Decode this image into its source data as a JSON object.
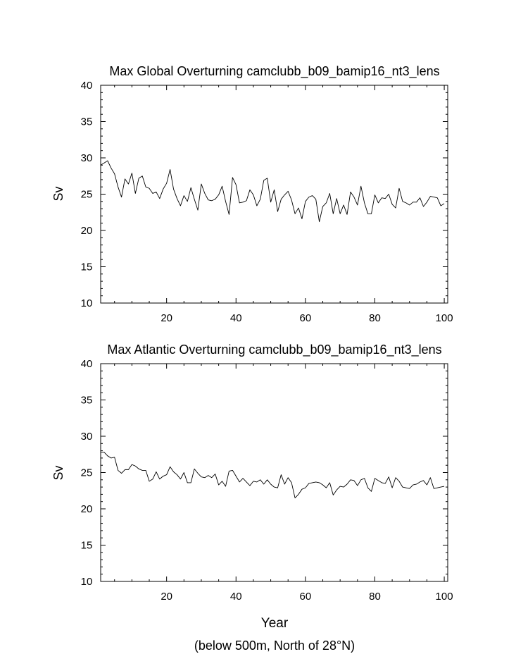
{
  "figure": {
    "xlabel": "Year",
    "caption": "(below 500m, North of 28°N)"
  },
  "chart_data": [
    {
      "type": "line",
      "title": "Max Global Overturning camclubb_b09_bamip16_nt3_lens",
      "xlabel": "",
      "ylabel": "Sv",
      "xlim": [
        1,
        101
      ],
      "ylim": [
        10,
        40
      ],
      "xticks": [
        20,
        40,
        60,
        80,
        100
      ],
      "yticks": [
        10,
        15,
        20,
        25,
        30,
        35,
        40
      ],
      "grid": false,
      "x_start": 1,
      "values": [
        29.0,
        29.3,
        29.6,
        28.6,
        27.8,
        26.0,
        24.6,
        27.1,
        26.4,
        27.9,
        25.1,
        27.2,
        27.5,
        26.0,
        25.8,
        25.1,
        25.3,
        24.4,
        25.7,
        26.5,
        28.4,
        25.7,
        24.4,
        23.4,
        24.8,
        24.0,
        25.9,
        24.3,
        22.8,
        26.4,
        25.1,
        24.2,
        24.1,
        24.3,
        24.9,
        26.1,
        24.0,
        22.2,
        27.3,
        26.3,
        23.8,
        23.9,
        24.1,
        25.6,
        24.9,
        23.4,
        24.3,
        26.9,
        27.2,
        23.9,
        25.6,
        22.6,
        24.3,
        24.9,
        25.4,
        24.2,
        22.3,
        23.1,
        21.6,
        24.0,
        24.6,
        24.8,
        24.3,
        21.2,
        23.3,
        23.8,
        25.1,
        22.3,
        24.4,
        22.3,
        23.5,
        22.2,
        25.3,
        24.6,
        23.5,
        26.1,
        23.8,
        22.3,
        22.3,
        24.9,
        23.8,
        24.5,
        24.4,
        25.0,
        23.6,
        23.1,
        25.8,
        24.0,
        23.8,
        23.5,
        23.9,
        23.9,
        24.5,
        23.3,
        23.9,
        24.7,
        24.6,
        24.5,
        23.4,
        23.7
      ]
    },
    {
      "type": "line",
      "title": "Max Atlantic Overturning camclubb_b09_bamip16_nt3_lens",
      "xlabel": "Year",
      "ylabel": "Sv",
      "xlim": [
        1,
        101
      ],
      "ylim": [
        10,
        40
      ],
      "xticks": [
        20,
        40,
        60,
        80,
        100
      ],
      "yticks": [
        10,
        15,
        20,
        25,
        30,
        35,
        40
      ],
      "grid": false,
      "x_start": 1,
      "values": [
        27.8,
        27.8,
        27.3,
        27.0,
        27.1,
        25.3,
        24.9,
        25.4,
        25.4,
        26.1,
        25.9,
        25.5,
        25.3,
        25.3,
        23.8,
        24.1,
        25.1,
        24.1,
        24.5,
        24.7,
        25.8,
        25.1,
        24.7,
        24.1,
        25.0,
        23.6,
        23.6,
        25.5,
        24.9,
        24.4,
        24.3,
        24.6,
        24.3,
        24.8,
        23.3,
        23.8,
        23.1,
        25.2,
        25.3,
        24.5,
        23.7,
        24.2,
        23.7,
        23.2,
        23.8,
        23.7,
        24.0,
        23.4,
        24.0,
        23.4,
        23.0,
        22.9,
        24.7,
        23.4,
        24.3,
        23.6,
        21.5,
        22.0,
        22.7,
        22.9,
        23.5,
        23.6,
        23.7,
        23.6,
        23.3,
        22.9,
        23.6,
        21.9,
        22.6,
        23.1,
        23.0,
        23.4,
        24.0,
        23.9,
        23.2,
        24.0,
        24.2,
        22.9,
        22.4,
        24.2,
        23.9,
        23.6,
        23.5,
        24.4,
        22.9,
        24.3,
        23.8,
        23.0,
        22.9,
        22.8,
        23.3,
        23.4,
        23.7,
        23.9,
        23.3,
        24.3,
        22.8,
        22.9,
        23.0,
        23.1
      ]
    }
  ]
}
